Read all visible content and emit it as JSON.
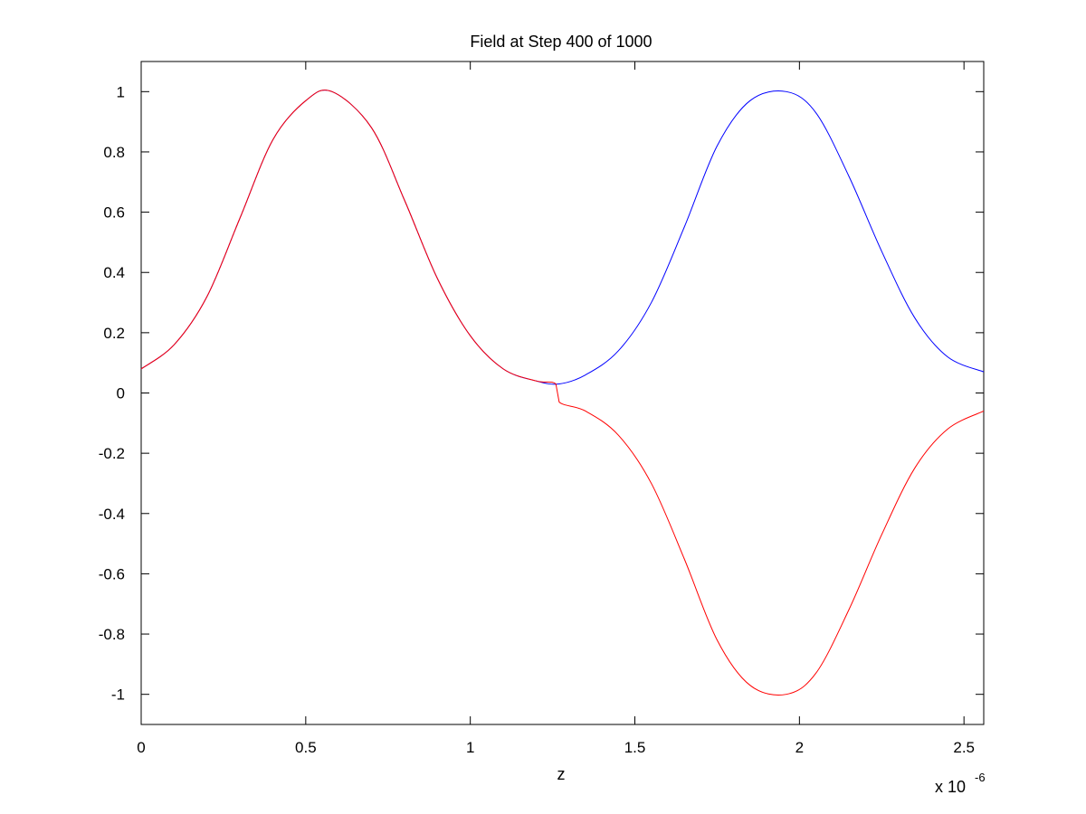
{
  "chart_data": {
    "type": "line",
    "title": "Field at Step 400 of 1000",
    "xlabel": "z",
    "ylabel": "",
    "x_exponent_label": "x 10",
    "x_exponent_power": "-6",
    "x_scale": 1e-06,
    "xlim": [
      0,
      2.56
    ],
    "ylim": [
      -1.1,
      1.1
    ],
    "xticks": [
      0,
      0.5,
      1,
      1.5,
      2,
      2.5
    ],
    "xtick_labels": [
      "0",
      "0.5",
      "1",
      "1.5",
      "2",
      "2.5"
    ],
    "yticks": [
      1,
      0.8,
      0.6,
      0.4,
      0.2,
      0,
      -0.2,
      -0.4,
      -0.6,
      -0.8,
      -1
    ],
    "ytick_labels": [
      "1",
      "0.8",
      "0.6",
      "0.4",
      "0.2",
      "0",
      "-0.2",
      "-0.4",
      "-0.6",
      "-0.8",
      "-1"
    ],
    "grid": false,
    "series": [
      {
        "color": "#0000ff",
        "x": [
          0,
          0.1,
          0.2,
          0.3,
          0.4,
          0.5,
          0.58,
          0.7,
          0.8,
          0.9,
          1.0,
          1.1,
          1.2,
          1.27,
          1.35,
          1.45,
          1.55,
          1.65,
          1.75,
          1.85,
          1.96,
          2.05,
          2.15,
          2.25,
          2.35,
          2.45,
          2.56
        ],
        "y": [
          0.08,
          0.16,
          0.32,
          0.58,
          0.84,
          0.97,
          1.0,
          0.88,
          0.64,
          0.38,
          0.19,
          0.08,
          0.04,
          0.03,
          0.06,
          0.14,
          0.3,
          0.55,
          0.82,
          0.97,
          1.0,
          0.93,
          0.72,
          0.47,
          0.25,
          0.12,
          0.07
        ]
      },
      {
        "color": "#ff0000",
        "x": [
          0,
          0.1,
          0.2,
          0.3,
          0.4,
          0.5,
          0.58,
          0.7,
          0.8,
          0.9,
          1.0,
          1.1,
          1.2,
          1.26,
          1.27,
          1.35,
          1.45,
          1.55,
          1.65,
          1.75,
          1.85,
          1.96,
          2.05,
          2.15,
          2.25,
          2.35,
          2.45,
          2.56
        ],
        "y": [
          0.08,
          0.16,
          0.32,
          0.58,
          0.84,
          0.97,
          1.0,
          0.88,
          0.64,
          0.38,
          0.19,
          0.08,
          0.04,
          0.03,
          -0.03,
          -0.06,
          -0.14,
          -0.3,
          -0.55,
          -0.82,
          -0.97,
          -1.0,
          -0.93,
          -0.72,
          -0.47,
          -0.25,
          -0.12,
          -0.06
        ]
      }
    ]
  }
}
